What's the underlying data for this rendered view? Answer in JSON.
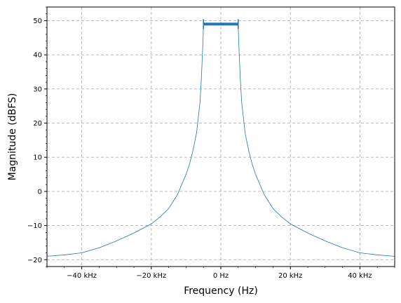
{
  "chart_data": {
    "type": "line",
    "xlabel": "Frequency (Hz)",
    "ylabel": "Magnitude (dBFS)",
    "xlim": [
      -50000,
      50000
    ],
    "ylim": [
      -22,
      54
    ],
    "grid": true,
    "x_ticks": [
      {
        "value": -40000,
        "label": "−40 kHz"
      },
      {
        "value": -20000,
        "label": "−20 kHz"
      },
      {
        "value": 0,
        "label": "0 Hz"
      },
      {
        "value": 20000,
        "label": "20 kHz"
      },
      {
        "value": 40000,
        "label": "40 kHz"
      }
    ],
    "y_ticks": [
      {
        "value": -20,
        "label": "−20"
      },
      {
        "value": -10,
        "label": "−10"
      },
      {
        "value": 0,
        "label": "0"
      },
      {
        "value": 10,
        "label": "10"
      },
      {
        "value": 20,
        "label": "20"
      },
      {
        "value": 30,
        "label": "30"
      },
      {
        "value": 40,
        "label": "40"
      },
      {
        "value": 50,
        "label": "50"
      }
    ],
    "series": [
      {
        "color": "#1f77b4",
        "x": [
          -50000,
          -45000,
          -40000,
          -35000,
          -30000,
          -25000,
          -20000,
          -17500,
          -15000,
          -12500,
          -10000,
          -9000,
          -8000,
          -7000,
          -6000,
          -5600,
          -5300,
          -5100,
          -5000,
          -4900,
          -4000,
          -3000,
          -2000,
          -1000,
          0,
          1000,
          2000,
          3000,
          4000,
          4900,
          5000,
          5100,
          5300,
          5600,
          6000,
          7000,
          8000,
          9000,
          10000,
          12500,
          15000,
          17500,
          20000,
          25000,
          30000,
          35000,
          40000,
          45000,
          50000
        ],
        "y": [
          -19,
          -18.6,
          -18,
          -16.5,
          -14.5,
          -12.2,
          -9.5,
          -7.5,
          -5,
          -1,
          5,
          8,
          12,
          17,
          26,
          33,
          40,
          45,
          49,
          49,
          49,
          49,
          49,
          49,
          49,
          49,
          49,
          49,
          49,
          49,
          49,
          45,
          40,
          33,
          26,
          17,
          12,
          8,
          5,
          -1,
          -5,
          -7.5,
          -9.5,
          -12.2,
          -14.5,
          -16.5,
          -18,
          -18.6,
          -19
        ]
      }
    ]
  }
}
